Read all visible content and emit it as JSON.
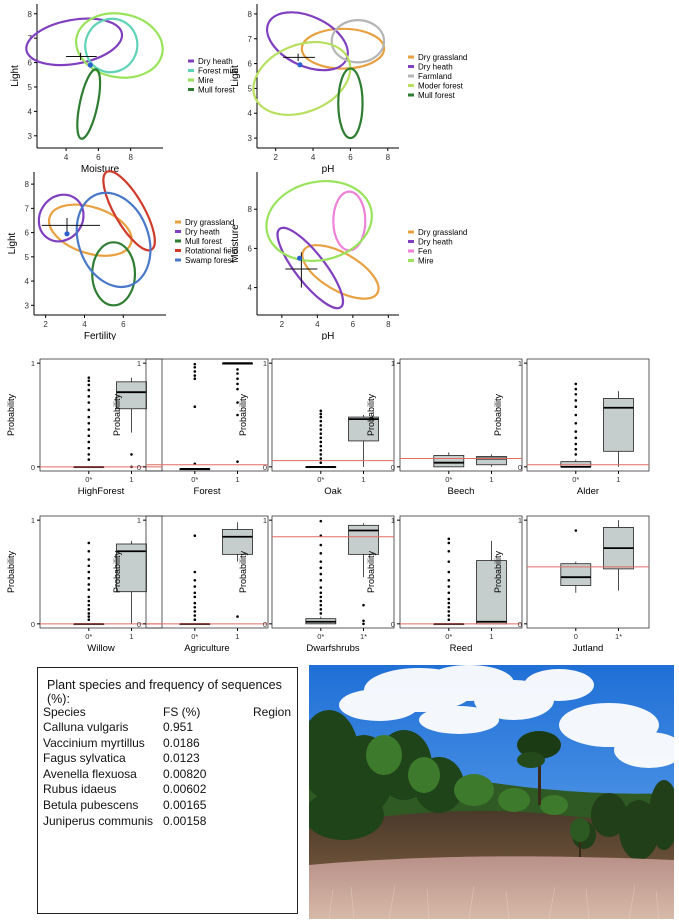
{
  "colors": {
    "Dry heath": "#7f3fbf",
    "Forest mire": "#5fd3b5",
    "Mire": "#99e35a",
    "Mull forest": "#2e7d32",
    "Dry grassland": "#e8a040",
    "Farmland": "#b5b5b5",
    "Moder forest": "#b8e060",
    "Rotational field": "#d03a2a",
    "Swamp forest": "#4a78c8",
    "Fen": "#ee82d8",
    "point": "#2d5fd0",
    "hline": "#e06b63",
    "box": "#c5cecc"
  },
  "ellipse_panels": [
    {
      "id": "light-moisture",
      "chart_data": {
        "type": "scatter",
        "xlabel": "Moisture",
        "ylabel": "Light",
        "xlim": [
          2.2,
          10.0
        ],
        "ylim": [
          2.5,
          8.4
        ],
        "xticks": [
          4,
          6,
          8
        ],
        "yticks": [
          3,
          4,
          5,
          6,
          7,
          8
        ],
        "ellipses": [
          {
            "name": "Dry heath",
            "cx": 4.5,
            "cy": 6.85,
            "rx": 3.0,
            "ry": 0.9,
            "angle": -10
          },
          {
            "name": "Forest mire",
            "cx": 6.8,
            "cy": 6.7,
            "rx": 1.6,
            "ry": 1.1,
            "angle": 25
          },
          {
            "name": "Mire",
            "cx": 7.3,
            "cy": 6.7,
            "rx": 2.7,
            "ry": 1.3,
            "angle": 10
          },
          {
            "name": "Mull forest",
            "cx": 5.4,
            "cy": 4.3,
            "rx": 0.55,
            "ry": 1.45,
            "angle": 12
          }
        ],
        "point": {
          "x": 5.5,
          "y": 5.9
        },
        "cross": {
          "x": 4.9,
          "y": 6.25,
          "hx": [
            4.0,
            5.9
          ],
          "vy": [
            6.1,
            6.4
          ]
        }
      }
    },
    {
      "id": "light-ph",
      "chart_data": {
        "type": "scatter",
        "xlabel": "pH",
        "ylabel": "Light",
        "xlim": [
          1.0,
          8.6
        ],
        "ylim": [
          2.6,
          8.4
        ],
        "xticks": [
          2,
          4,
          6,
          8
        ],
        "yticks": [
          3,
          4,
          5,
          6,
          7,
          8
        ],
        "ellipses": [
          {
            "name": "Dry grassland",
            "cx": 5.6,
            "cy": 6.6,
            "rx": 2.2,
            "ry": 0.8,
            "angle": 0
          },
          {
            "name": "Dry heath",
            "cx": 3.7,
            "cy": 6.9,
            "rx": 2.3,
            "ry": 1.0,
            "angle": 25
          },
          {
            "name": "Farmland",
            "cx": 6.4,
            "cy": 6.9,
            "rx": 1.4,
            "ry": 0.85,
            "angle": 0
          },
          {
            "name": "Moder forest",
            "cx": 3.4,
            "cy": 5.4,
            "rx": 2.7,
            "ry": 1.35,
            "angle": -22
          },
          {
            "name": "Mull forest",
            "cx": 6.0,
            "cy": 4.4,
            "rx": 0.65,
            "ry": 1.4,
            "angle": 0
          }
        ],
        "point": {
          "x": 3.3,
          "y": 5.95
        },
        "cross": {
          "x": 3.2,
          "y": 6.25,
          "hx": [
            2.4,
            4.1
          ],
          "vy": [
            6.1,
            6.4
          ]
        }
      }
    },
    {
      "id": "light-fertility",
      "chart_data": {
        "type": "scatter",
        "xlabel": "Fertility",
        "ylabel": "Light",
        "xlim": [
          1.4,
          8.2
        ],
        "ylim": [
          2.6,
          8.5
        ],
        "xticks": [
          2,
          4,
          6
        ],
        "yticks": [
          3,
          4,
          5,
          6,
          7,
          8
        ],
        "ellipses": [
          {
            "name": "Dry grassland",
            "cx": 4.3,
            "cy": 6.1,
            "rx": 2.2,
            "ry": 0.95,
            "angle": 18
          },
          {
            "name": "Dry heath",
            "cx": 2.8,
            "cy": 6.6,
            "rx": 1.1,
            "ry": 1.0,
            "angle": 35
          },
          {
            "name": "Mull forest",
            "cx": 5.5,
            "cy": 4.3,
            "rx": 1.1,
            "ry": 1.3,
            "angle": 0
          },
          {
            "name": "Rotational field",
            "cx": 6.3,
            "cy": 6.9,
            "rx": 0.75,
            "ry": 1.85,
            "angle": -30
          },
          {
            "name": "Swamp forest",
            "cx": 5.5,
            "cy": 5.7,
            "rx": 1.8,
            "ry": 2.0,
            "angle": -20
          }
        ],
        "point": {
          "x": 3.1,
          "y": 5.95
        },
        "cross": {
          "x": 3.1,
          "y": 6.3,
          "hx": [
            1.8,
            4.8
          ],
          "vy": [
            6.0,
            6.6
          ]
        }
      }
    },
    {
      "id": "moisture-ph",
      "chart_data": {
        "type": "scatter",
        "xlabel": "pH",
        "ylabel": "Moisture",
        "xlim": [
          0.6,
          8.6
        ],
        "ylim": [
          2.6,
          9.9
        ],
        "xticks": [
          2,
          4,
          6,
          8
        ],
        "yticks": [
          4,
          6,
          8
        ],
        "ellipses": [
          {
            "name": "Dry grassland",
            "cx": 5.3,
            "cy": 4.8,
            "rx": 2.4,
            "ry": 0.95,
            "angle": 30
          },
          {
            "name": "Dry heath",
            "cx": 3.6,
            "cy": 5.0,
            "rx": 2.8,
            "ry": 0.75,
            "angle": 52
          },
          {
            "name": "Fen",
            "cx": 5.8,
            "cy": 7.4,
            "rx": 0.9,
            "ry": 1.5,
            "angle": 0
          },
          {
            "name": "Mire",
            "cx": 4.1,
            "cy": 7.4,
            "rx": 3.0,
            "ry": 2.0,
            "angle": -12
          }
        ],
        "point": {
          "x": 3.0,
          "y": 5.5
        },
        "cross": {
          "x": 3.1,
          "y": 4.95,
          "hx": [
            2.2,
            4.0
          ],
          "vy": [
            4.0,
            5.8
          ]
        }
      }
    }
  ],
  "box_panels": [
    {
      "label": "HighForest",
      "ylabel": "Probability",
      "cats": [
        "0*",
        "1"
      ],
      "hline": 0.0,
      "boxes": [
        {
          "q1": 0.0,
          "med": 0.0,
          "q3": 0.0,
          "lo": 0.0,
          "hi": 0.0,
          "out": [
            0.07,
            0.12,
            0.18,
            0.24,
            0.3,
            0.36,
            0.42,
            0.48,
            0.55,
            0.62,
            0.68,
            0.74,
            0.79,
            0.83,
            0.86
          ]
        },
        {
          "q1": 0.56,
          "med": 0.72,
          "q3": 0.82,
          "lo": 0.33,
          "hi": 0.86,
          "out": [
            0.12,
            0.0
          ]
        }
      ]
    },
    {
      "label": "Forest",
      "ylabel": "Probability",
      "cats": [
        "0*",
        "1"
      ],
      "hline": 0.02,
      "boxes": [
        {
          "q1": -0.02,
          "med": -0.02,
          "q3": -0.02,
          "lo": -0.02,
          "hi": -0.02,
          "out": [
            0.03,
            0.58,
            0.85,
            0.88,
            0.92,
            0.96,
            0.99
          ]
        },
        {
          "q1": 0.99,
          "med": 1.0,
          "q3": 1.0,
          "lo": 0.99,
          "hi": 1.0,
          "out": [
            0.05,
            0.5,
            0.62,
            0.75,
            0.8,
            0.85,
            0.9,
            0.94
          ]
        }
      ]
    },
    {
      "label": "Oak",
      "ylabel": "Probability",
      "cats": [
        "0*",
        "1"
      ],
      "hline": 0.06,
      "boxes": [
        {
          "q1": 0.0,
          "med": 0.0,
          "q3": 0.0,
          "lo": 0.0,
          "hi": 0.0,
          "out": [
            0.04,
            0.08,
            0.12,
            0.16,
            0.2,
            0.24,
            0.28,
            0.32,
            0.36,
            0.4,
            0.44,
            0.48,
            0.51,
            0.54
          ]
        },
        {
          "q1": 0.25,
          "med": 0.46,
          "q3": 0.48,
          "lo": 0.0,
          "hi": 0.5,
          "out": []
        }
      ]
    },
    {
      "label": "Beech",
      "ylabel": "Probability",
      "cats": [
        "0*",
        "1"
      ],
      "hline": 0.08,
      "boxes": [
        {
          "q1": 0.0,
          "med": 0.04,
          "q3": 0.11,
          "lo": 0.0,
          "hi": 0.14,
          "out": []
        },
        {
          "q1": 0.02,
          "med": 0.08,
          "q3": 0.1,
          "lo": 0.0,
          "hi": 0.12,
          "out": []
        }
      ]
    },
    {
      "label": "Alder",
      "ylabel": "Probability",
      "cats": [
        "0*",
        "1"
      ],
      "hline": 0.02,
      "boxes": [
        {
          "q1": 0.0,
          "med": 0.0,
          "q3": 0.05,
          "lo": 0.0,
          "hi": 0.07,
          "out": [
            0.12,
            0.17,
            0.22,
            0.28,
            0.34,
            0.42,
            0.5,
            0.58,
            0.64,
            0.7,
            0.75,
            0.8
          ]
        },
        {
          "q1": 0.15,
          "med": 0.57,
          "q3": 0.66,
          "lo": 0.0,
          "hi": 0.73,
          "out": []
        }
      ]
    },
    {
      "label": "Willow",
      "ylabel": "Probability",
      "cats": [
        "0*",
        "1"
      ],
      "hline": 0.0,
      "boxes": [
        {
          "q1": 0.0,
          "med": 0.0,
          "q3": 0.0,
          "lo": 0.0,
          "hi": 0.0,
          "out": [
            0.04,
            0.07,
            0.1,
            0.14,
            0.18,
            0.22,
            0.26,
            0.33,
            0.38,
            0.44,
            0.5,
            0.56,
            0.62,
            0.7,
            0.78
          ]
        },
        {
          "q1": 0.31,
          "med": 0.7,
          "q3": 0.77,
          "lo": 0.0,
          "hi": 0.8,
          "out": []
        }
      ]
    },
    {
      "label": "Agriculture",
      "ylabel": "Probability",
      "cats": [
        "0*",
        "1"
      ],
      "hline": 0.0,
      "boxes": [
        {
          "q1": 0.0,
          "med": 0.0,
          "q3": 0.0,
          "lo": 0.0,
          "hi": 0.0,
          "out": [
            0.04,
            0.08,
            0.12,
            0.16,
            0.2,
            0.26,
            0.3,
            0.36,
            0.42,
            0.5,
            0.85
          ]
        },
        {
          "q1": 0.67,
          "med": 0.84,
          "q3": 0.91,
          "lo": 0.6,
          "hi": 0.98,
          "out": [
            0.07
          ]
        }
      ]
    },
    {
      "label": "Dwarfshrubs",
      "ylabel": "Probability",
      "cats": [
        "0*",
        "1*"
      ],
      "hline": 0.84,
      "boxes": [
        {
          "q1": 0.0,
          "med": 0.02,
          "q3": 0.05,
          "lo": 0.0,
          "hi": 0.07,
          "out": [
            0.1,
            0.14,
            0.18,
            0.22,
            0.26,
            0.3,
            0.35,
            0.42,
            0.48,
            0.54,
            0.6,
            0.68,
            0.76,
            0.85,
            0.99
          ]
        },
        {
          "q1": 0.67,
          "med": 0.9,
          "q3": 0.95,
          "lo": 0.45,
          "hi": 0.97,
          "out": [
            0.18,
            0.03,
            0.0
          ]
        }
      ]
    },
    {
      "label": "Reed",
      "ylabel": "Probability",
      "cats": [
        "0*",
        "1"
      ],
      "hline": 0.0,
      "boxes": [
        {
          "q1": 0.0,
          "med": 0.0,
          "q3": 0.0,
          "lo": 0.0,
          "hi": 0.0,
          "out": [
            0.04,
            0.08,
            0.12,
            0.16,
            0.2,
            0.24,
            0.3,
            0.36,
            0.42,
            0.5,
            0.6,
            0.7,
            0.78,
            0.82
          ]
        },
        {
          "q1": 0.0,
          "med": 0.02,
          "q3": 0.61,
          "lo": 0.0,
          "hi": 0.8,
          "out": []
        }
      ]
    },
    {
      "label": "Jutland",
      "ylabel": "Probability",
      "cats": [
        "0",
        "1*"
      ],
      "hline": 0.55,
      "boxes": [
        {
          "q1": 0.37,
          "med": 0.45,
          "q3": 0.58,
          "lo": 0.3,
          "hi": 0.6,
          "out": [
            0.9
          ]
        },
        {
          "q1": 0.53,
          "med": 0.73,
          "q3": 0.93,
          "lo": 0.32,
          "hi": 1.0,
          "out": []
        }
      ]
    }
  ],
  "species_box": {
    "header": "Plant species and frequency of sequences (%):",
    "col_species": "Species",
    "col_fs": "FS (%)",
    "col_region": "Region",
    "rows": [
      {
        "name": "Calluna vulgaris",
        "fs": "0.951"
      },
      {
        "name": "Vaccinium myrtillus",
        "fs": "0.0186"
      },
      {
        "name": "Fagus sylvatica",
        "fs": "0.0123"
      },
      {
        "name": "Avenella flexuosa",
        "fs": "0.00820"
      },
      {
        "name": "Rubus idaeus",
        "fs": "0.00602"
      },
      {
        "name": "Betula pubescens",
        "fs": "0.00165"
      },
      {
        "name": "Juniperus communis",
        "fs": "0.00158"
      }
    ]
  }
}
